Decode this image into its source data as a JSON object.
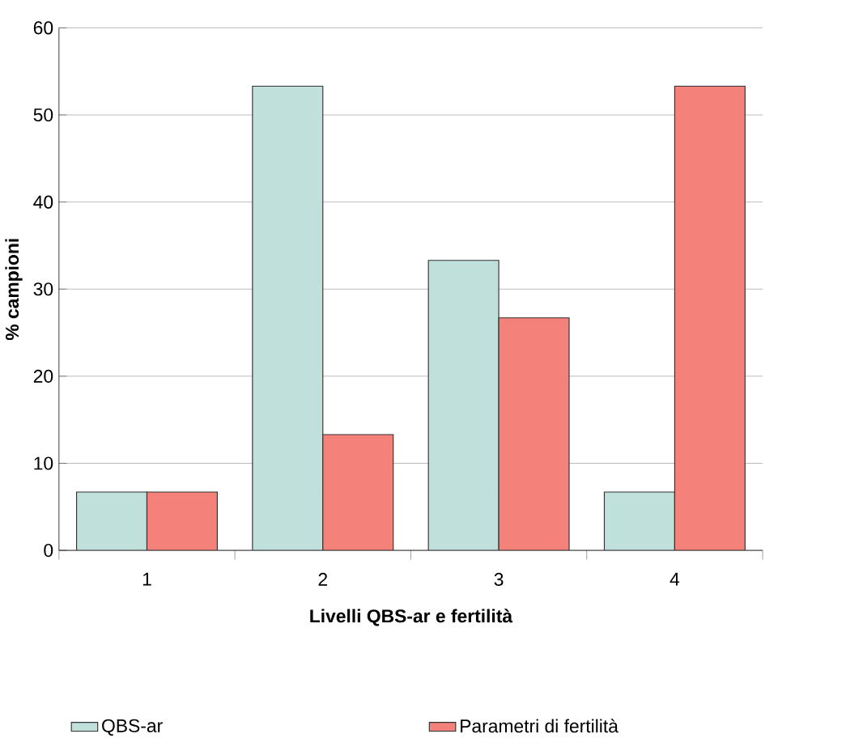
{
  "chart_data": {
    "type": "bar",
    "xlabel": "Livelli QBS-ar e fertilità",
    "ylabel": "% campioni",
    "categories": [
      "1",
      "2",
      "3",
      "4"
    ],
    "series": [
      {
        "name": "QBS-ar",
        "color": "#c0e0dc",
        "values": [
          6.7,
          53.3,
          33.3,
          6.7
        ]
      },
      {
        "name": "Parametri di fertilità",
        "color": "#f4827a",
        "values": [
          6.7,
          13.3,
          26.7,
          53.3
        ]
      }
    ],
    "ylim": [
      0,
      60
    ],
    "yticks": [
      0,
      10,
      20,
      30,
      40,
      50,
      60
    ],
    "grid": "y",
    "legend": "bottom"
  }
}
